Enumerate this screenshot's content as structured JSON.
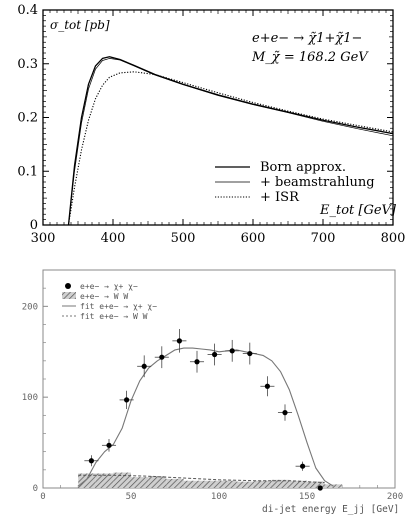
{
  "chart_data": [
    {
      "type": "line",
      "ylabel": "σ_tot [pb]",
      "xlabel": "E_tot [GeV]",
      "annotation_process": "e+e− → χ̃1+χ̃1−",
      "annotation_mass": "M_χ̃ = 168.2 GeV",
      "xlim": [
        300,
        800
      ],
      "ylim": [
        0,
        0.4
      ],
      "xticks": [
        "300",
        "400",
        "500",
        "600",
        "700",
        "800"
      ],
      "yticks": [
        "0",
        "0.1",
        "0.2",
        "0.3",
        "0.4"
      ],
      "legend_position": "bottom-right",
      "series": [
        {
          "name": "Born approx.",
          "style": "solid",
          "x": [
            336.4,
            345,
            355,
            365,
            375,
            385,
            395,
            410,
            430,
            460,
            500,
            550,
            600,
            650,
            700,
            750,
            800
          ],
          "y": [
            0.0,
            0.11,
            0.2,
            0.262,
            0.296,
            0.31,
            0.313,
            0.308,
            0.297,
            0.28,
            0.262,
            0.242,
            0.225,
            0.21,
            0.195,
            0.182,
            0.17
          ]
        },
        {
          "name": "+ beamstrahlung",
          "style": "thin",
          "x": [
            336.4,
            345,
            355,
            365,
            375,
            385,
            395,
            410,
            430,
            460,
            500,
            550,
            600,
            650,
            700,
            750,
            800
          ],
          "y": [
            0.0,
            0.1,
            0.19,
            0.253,
            0.29,
            0.306,
            0.31,
            0.307,
            0.296,
            0.279,
            0.261,
            0.241,
            0.224,
            0.209,
            0.193,
            0.179,
            0.166
          ]
        },
        {
          "name": "+ ISR",
          "style": "dotted",
          "x": [
            336.4,
            345,
            355,
            365,
            375,
            385,
            395,
            410,
            430,
            460,
            500,
            550,
            600,
            650,
            700,
            750,
            800
          ],
          "y": [
            0.0,
            0.07,
            0.14,
            0.195,
            0.235,
            0.26,
            0.275,
            0.283,
            0.285,
            0.28,
            0.265,
            0.246,
            0.228,
            0.212,
            0.197,
            0.185,
            0.173
          ]
        }
      ]
    },
    {
      "type": "bar",
      "xlabel": "di-jet energy E_jj [GeV]",
      "xlim": [
        0,
        200
      ],
      "ylim": [
        0,
        240
      ],
      "xticks": [
        "0",
        "50",
        "100",
        "150",
        "200"
      ],
      "yticks": [
        "0",
        "100",
        "200"
      ],
      "legend_position": "top-left",
      "legend": [
        "e+e− → χ+ χ−",
        "e+e− → W W",
        "fit e+e− → χ+ χ−",
        "fit e+e− → W W"
      ],
      "data_points": {
        "x": [
          27.5,
          37.5,
          47.5,
          57.5,
          67.5,
          77.5,
          87.5,
          97.5,
          107.5,
          117.5,
          127.5,
          137.5,
          147.5,
          157.5
        ],
        "y": [
          30,
          47,
          97,
          134,
          144,
          162,
          139,
          147,
          151,
          148,
          112,
          83,
          24,
          0
        ],
        "err": [
          6,
          7,
          10,
          12,
          12,
          13,
          12,
          12,
          12,
          12,
          11,
          9,
          5,
          0
        ]
      },
      "fit_chi": {
        "x": [
          20,
          25,
          30,
          35,
          40,
          45,
          50,
          55,
          60,
          65,
          70,
          75,
          80,
          85,
          90,
          95,
          100,
          105,
          110,
          115,
          120,
          125,
          130,
          135,
          140,
          145,
          150,
          155,
          160,
          165
        ],
        "y": [
          2,
          10,
          28,
          40,
          48,
          66,
          96,
          118,
          132,
          140,
          146,
          152,
          154,
          154,
          153,
          152,
          150,
          151,
          152,
          150,
          148,
          146,
          140,
          128,
          108,
          80,
          50,
          22,
          8,
          2
        ]
      },
      "ww_histogram": {
        "bin_edges": [
          20,
          30,
          40,
          50,
          60,
          70,
          80,
          90,
          100,
          110,
          120,
          130,
          140,
          150,
          160,
          170
        ],
        "values": [
          16,
          16,
          17,
          12,
          13,
          10,
          8,
          8,
          8,
          7,
          8,
          9,
          8,
          7,
          4
        ]
      },
      "fit_ww": {
        "x": [
          20,
          40,
          60,
          80,
          100,
          120,
          140,
          160
        ],
        "y": [
          14,
          14,
          13,
          11,
          9,
          8,
          8,
          6
        ]
      }
    }
  ]
}
